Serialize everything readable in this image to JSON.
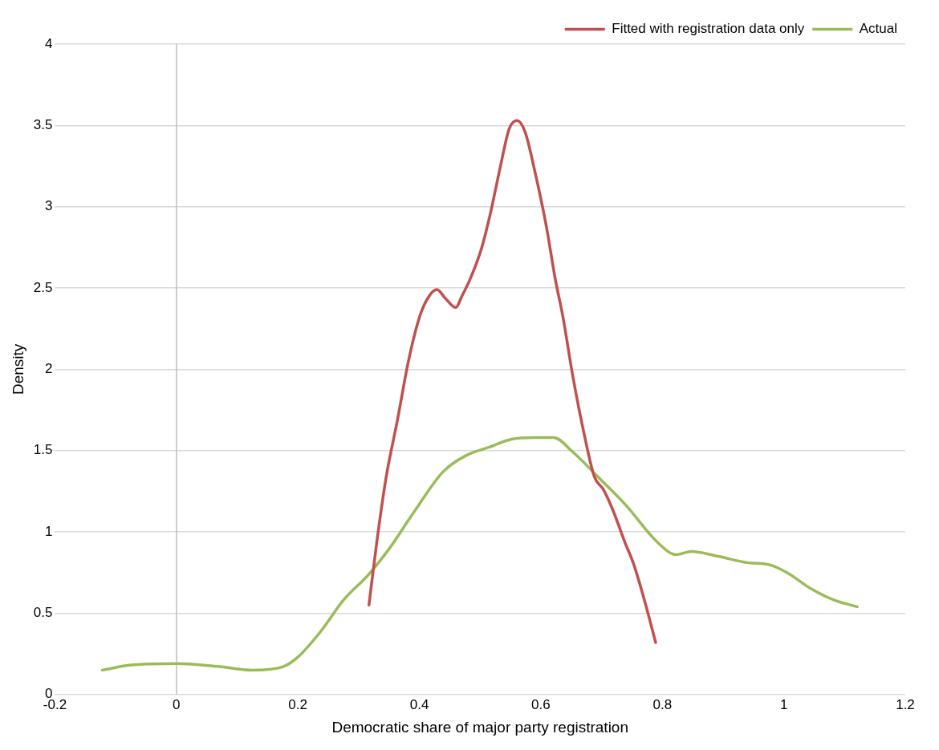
{
  "chart_data": {
    "type": "line",
    "xlabel": "Democratic share of major party registration",
    "ylabel": "Density",
    "xlim": [
      -0.2,
      1.2
    ],
    "xticks": [
      -0.2,
      0,
      0.2,
      0.4,
      0.6,
      0.8,
      1,
      1.2
    ],
    "ylim": [
      0,
      4
    ],
    "yticks": [
      0,
      0.5,
      1,
      1.5,
      2,
      2.5,
      3,
      3.5,
      4
    ],
    "grid": "y",
    "legend": "top right",
    "marker": "none",
    "line_style": "solid",
    "ref_lines": [
      {
        "axis": "x",
        "value": 0,
        "color": "#bfbfbf"
      }
    ],
    "series": [
      {
        "name": "Fitted with registration data only",
        "color": "#c0504d",
        "x": [
          0.317,
          0.33,
          0.345,
          0.364,
          0.382,
          0.401,
          0.416,
          0.429,
          0.442,
          0.46,
          0.47,
          0.483,
          0.502,
          0.517,
          0.533,
          0.548,
          0.561,
          0.574,
          0.59,
          0.609,
          0.624,
          0.636,
          0.653,
          0.672,
          0.688,
          0.703,
          0.718,
          0.738,
          0.753,
          0.772,
          0.789
        ],
        "values": [
          0.55,
          0.94,
          1.33,
          1.69,
          2.05,
          2.33,
          2.45,
          2.49,
          2.44,
          2.38,
          2.45,
          2.55,
          2.74,
          2.96,
          3.24,
          3.48,
          3.53,
          3.46,
          3.22,
          2.88,
          2.55,
          2.33,
          1.95,
          1.59,
          1.34,
          1.26,
          1.14,
          0.94,
          0.8,
          0.56,
          0.32
        ]
      },
      {
        "name": "Actual",
        "color": "#9bbb59",
        "x": [
          -0.122,
          -0.077,
          0,
          0.074,
          0.125,
          0.175,
          0.2,
          0.238,
          0.275,
          0.317,
          0.351,
          0.389,
          0.439,
          0.477,
          0.514,
          0.552,
          0.59,
          0.621,
          0.653,
          0.691,
          0.741,
          0.791,
          0.823,
          0.848,
          0.892,
          0.942,
          0.974,
          1.005,
          1.045,
          1.083,
          1.121
        ],
        "values": [
          0.15,
          0.18,
          0.19,
          0.17,
          0.15,
          0.17,
          0.23,
          0.39,
          0.58,
          0.74,
          0.9,
          1.11,
          1.37,
          1.47,
          1.52,
          1.57,
          1.58,
          1.58,
          1.49,
          1.35,
          1.16,
          0.94,
          0.86,
          0.88,
          0.85,
          0.81,
          0.8,
          0.75,
          0.65,
          0.58,
          0.54
        ]
      }
    ]
  }
}
